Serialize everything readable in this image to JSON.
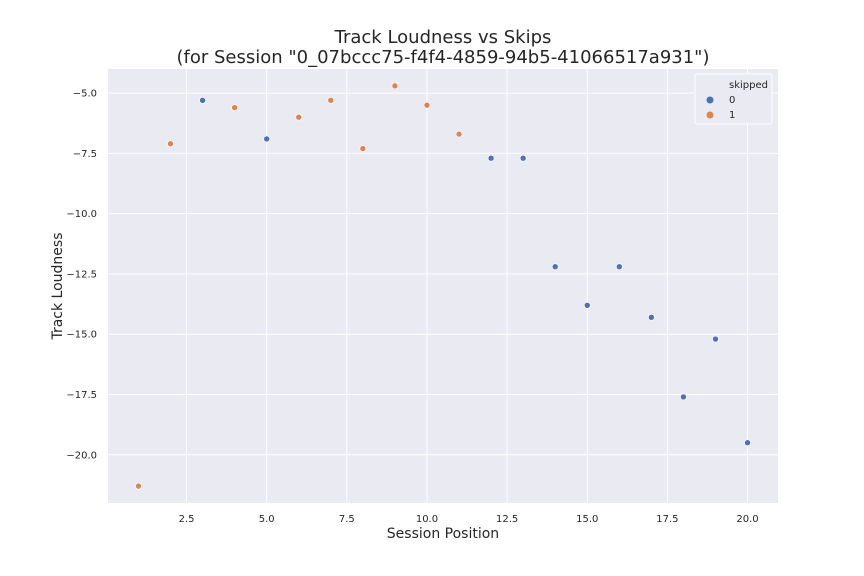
{
  "chart_data": {
    "type": "scatter",
    "title": "Track Loudness vs Skips",
    "subtitle": "(for Session \"0_07bccc75-f4f4-4859-94b5-41066517a931\")",
    "xlabel": "Session Position",
    "ylabel": "Track Loudness",
    "xlim": [
      0.05,
      20.95
    ],
    "ylim": [
      -22.0,
      -4.0
    ],
    "xticks": [
      2.5,
      5.0,
      7.5,
      10.0,
      12.5,
      15.0,
      17.5,
      20.0
    ],
    "xtick_labels": [
      "2.5",
      "5.0",
      "7.5",
      "10.0",
      "12.5",
      "15.0",
      "17.5",
      "20.0"
    ],
    "yticks": [
      -5.0,
      -7.5,
      -10.0,
      -12.5,
      -15.0,
      -17.5,
      -20.0
    ],
    "ytick_labels": [
      "−5.0",
      "−7.5",
      "−10.0",
      "−12.5",
      "−15.0",
      "−17.5",
      "−20.0"
    ],
    "grid": true,
    "legend": {
      "title": "skipped",
      "placement": "top-right",
      "entries": [
        {
          "label": "0",
          "color": "#4c72b0"
        },
        {
          "label": "1",
          "color": "#dd8452"
        }
      ]
    },
    "series": [
      {
        "name": "0",
        "color": "#4c72b0",
        "x": [
          3,
          5,
          12,
          13,
          14,
          15,
          16,
          17,
          18,
          19,
          20
        ],
        "y": [
          -5.3,
          -6.9,
          -7.7,
          -7.7,
          -12.2,
          -13.8,
          -12.2,
          -14.3,
          -17.6,
          -15.2,
          -19.5
        ]
      },
      {
        "name": "1",
        "color": "#dd8452",
        "x": [
          1,
          2,
          4,
          6,
          7,
          8,
          9,
          10,
          11
        ],
        "y": [
          -21.3,
          -7.1,
          -5.6,
          -6.0,
          -5.3,
          -7.3,
          -4.7,
          -5.5,
          -6.7
        ]
      }
    ]
  },
  "colors": {
    "plot_background": "#eaeaf2",
    "grid": "#ffffff"
  }
}
